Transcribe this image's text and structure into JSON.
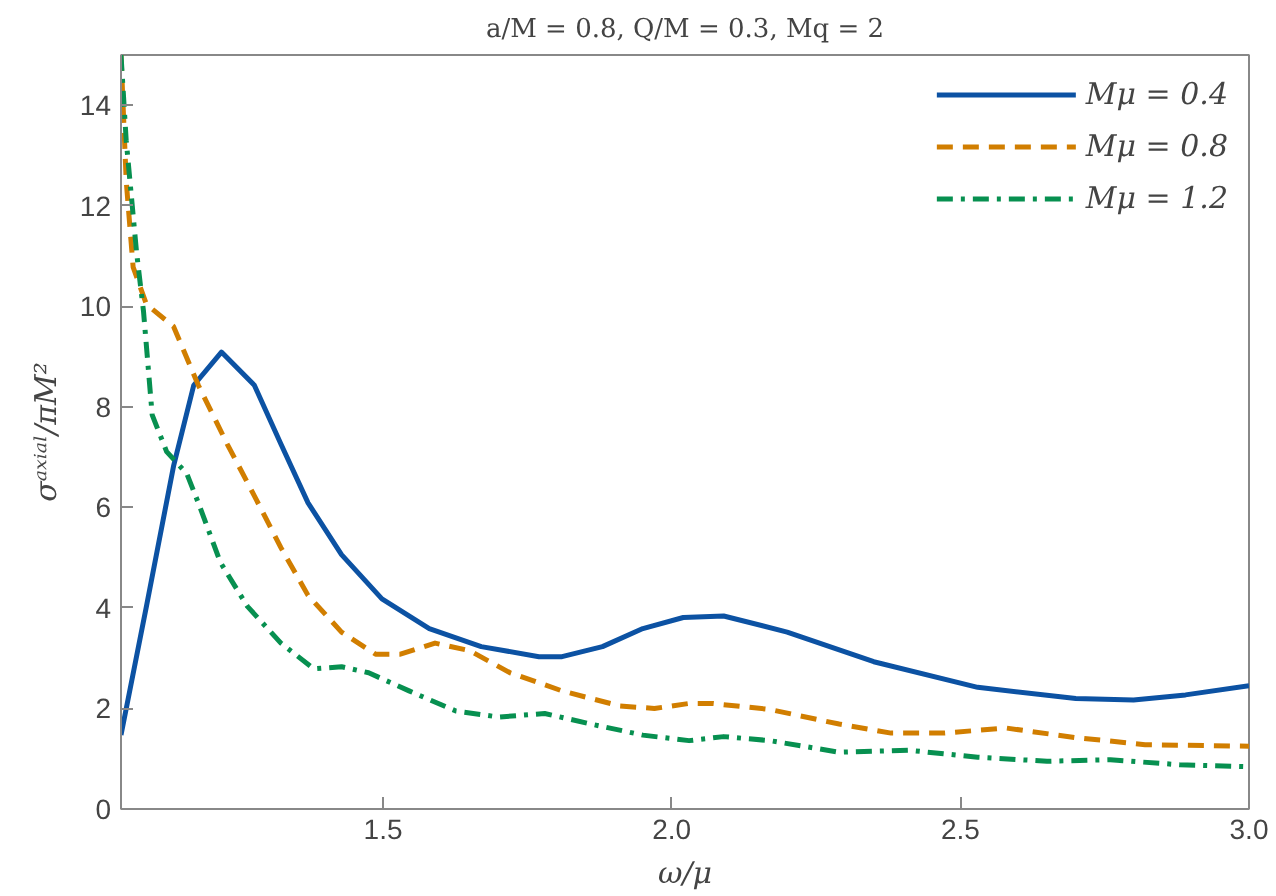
{
  "chart_data": {
    "type": "line",
    "title": "a/M = 0.8, Q/M = 0.3, Mq = 2",
    "xlabel": "ω/μ",
    "ylabel": "σᵃˣⁱᵃˡ/πM²",
    "xlim": [
      1.046,
      3.0
    ],
    "ylim": [
      0,
      15
    ],
    "xticks": [
      1.5,
      {
        "value": 2,
        "label": "2.0"
      },
      2.5,
      {
        "value": 3,
        "label": "3.0"
      }
    ],
    "yticks": [
      0,
      2,
      4,
      6,
      8,
      10,
      12,
      14
    ],
    "grid": false,
    "legend": "top right",
    "series": [
      {
        "name": "Mμ = 0.4",
        "color": "#0c52a3",
        "line_style": "solid",
        "x": [
          1.046,
          1.09,
          1.137,
          1.172,
          1.22,
          1.277,
          1.323,
          1.37,
          1.428,
          1.498,
          1.58,
          1.67,
          1.77,
          1.81,
          1.88,
          1.95,
          2.02,
          2.09,
          2.2,
          2.35,
          2.53,
          2.7,
          2.8,
          2.89,
          3.0
        ],
        "values": [
          1.47,
          4.03,
          6.82,
          8.43,
          9.09,
          8.43,
          7.26,
          6.09,
          5.06,
          4.18,
          3.59,
          3.23,
          3.03,
          3.03,
          3.23,
          3.59,
          3.81,
          3.84,
          3.52,
          2.93,
          2.42,
          2.2,
          2.17,
          2.27,
          2.45
        ]
      },
      {
        "name": "Mμ = 0.8",
        "color": "#d17e00",
        "line_style": "dashed",
        "x": [
          1.046,
          1.055,
          1.067,
          1.09,
          1.137,
          1.18,
          1.23,
          1.277,
          1.323,
          1.37,
          1.428,
          1.487,
          1.53,
          1.59,
          1.65,
          1.72,
          1.81,
          1.91,
          1.97,
          2.03,
          2.07,
          2.17,
          2.29,
          2.38,
          2.47,
          2.58,
          2.7,
          2.82,
          3.0
        ],
        "values": [
          15,
          12.5,
          10.78,
          10.04,
          9.6,
          8.43,
          7.26,
          6.23,
          5.2,
          4.25,
          3.52,
          3.08,
          3.08,
          3.3,
          3.15,
          2.71,
          2.35,
          2.05,
          2.0,
          2.1,
          2.1,
          1.98,
          1.69,
          1.51,
          1.51,
          1.61,
          1.42,
          1.28,
          1.25
        ]
      },
      {
        "name": "Mμ = 1.2",
        "color": "#079050",
        "line_style": "dashdot",
        "x": [
          1.046,
          1.055,
          1.073,
          1.085,
          1.1,
          1.125,
          1.16,
          1.18,
          1.218,
          1.265,
          1.323,
          1.38,
          1.428,
          1.475,
          1.545,
          1.626,
          1.7,
          1.78,
          1.86,
          1.95,
          2.03,
          2.09,
          2.17,
          2.29,
          2.41,
          2.53,
          2.65,
          2.76,
          2.88,
          3.0
        ],
        "values": [
          15,
          13.3,
          11.07,
          9.9,
          7.84,
          7.11,
          6.67,
          6.09,
          4.91,
          4.03,
          3.3,
          2.79,
          2.83,
          2.71,
          2.35,
          1.95,
          1.83,
          1.9,
          1.69,
          1.47,
          1.36,
          1.44,
          1.36,
          1.13,
          1.17,
          1.03,
          0.95,
          0.98,
          0.88,
          0.84
        ]
      }
    ]
  }
}
